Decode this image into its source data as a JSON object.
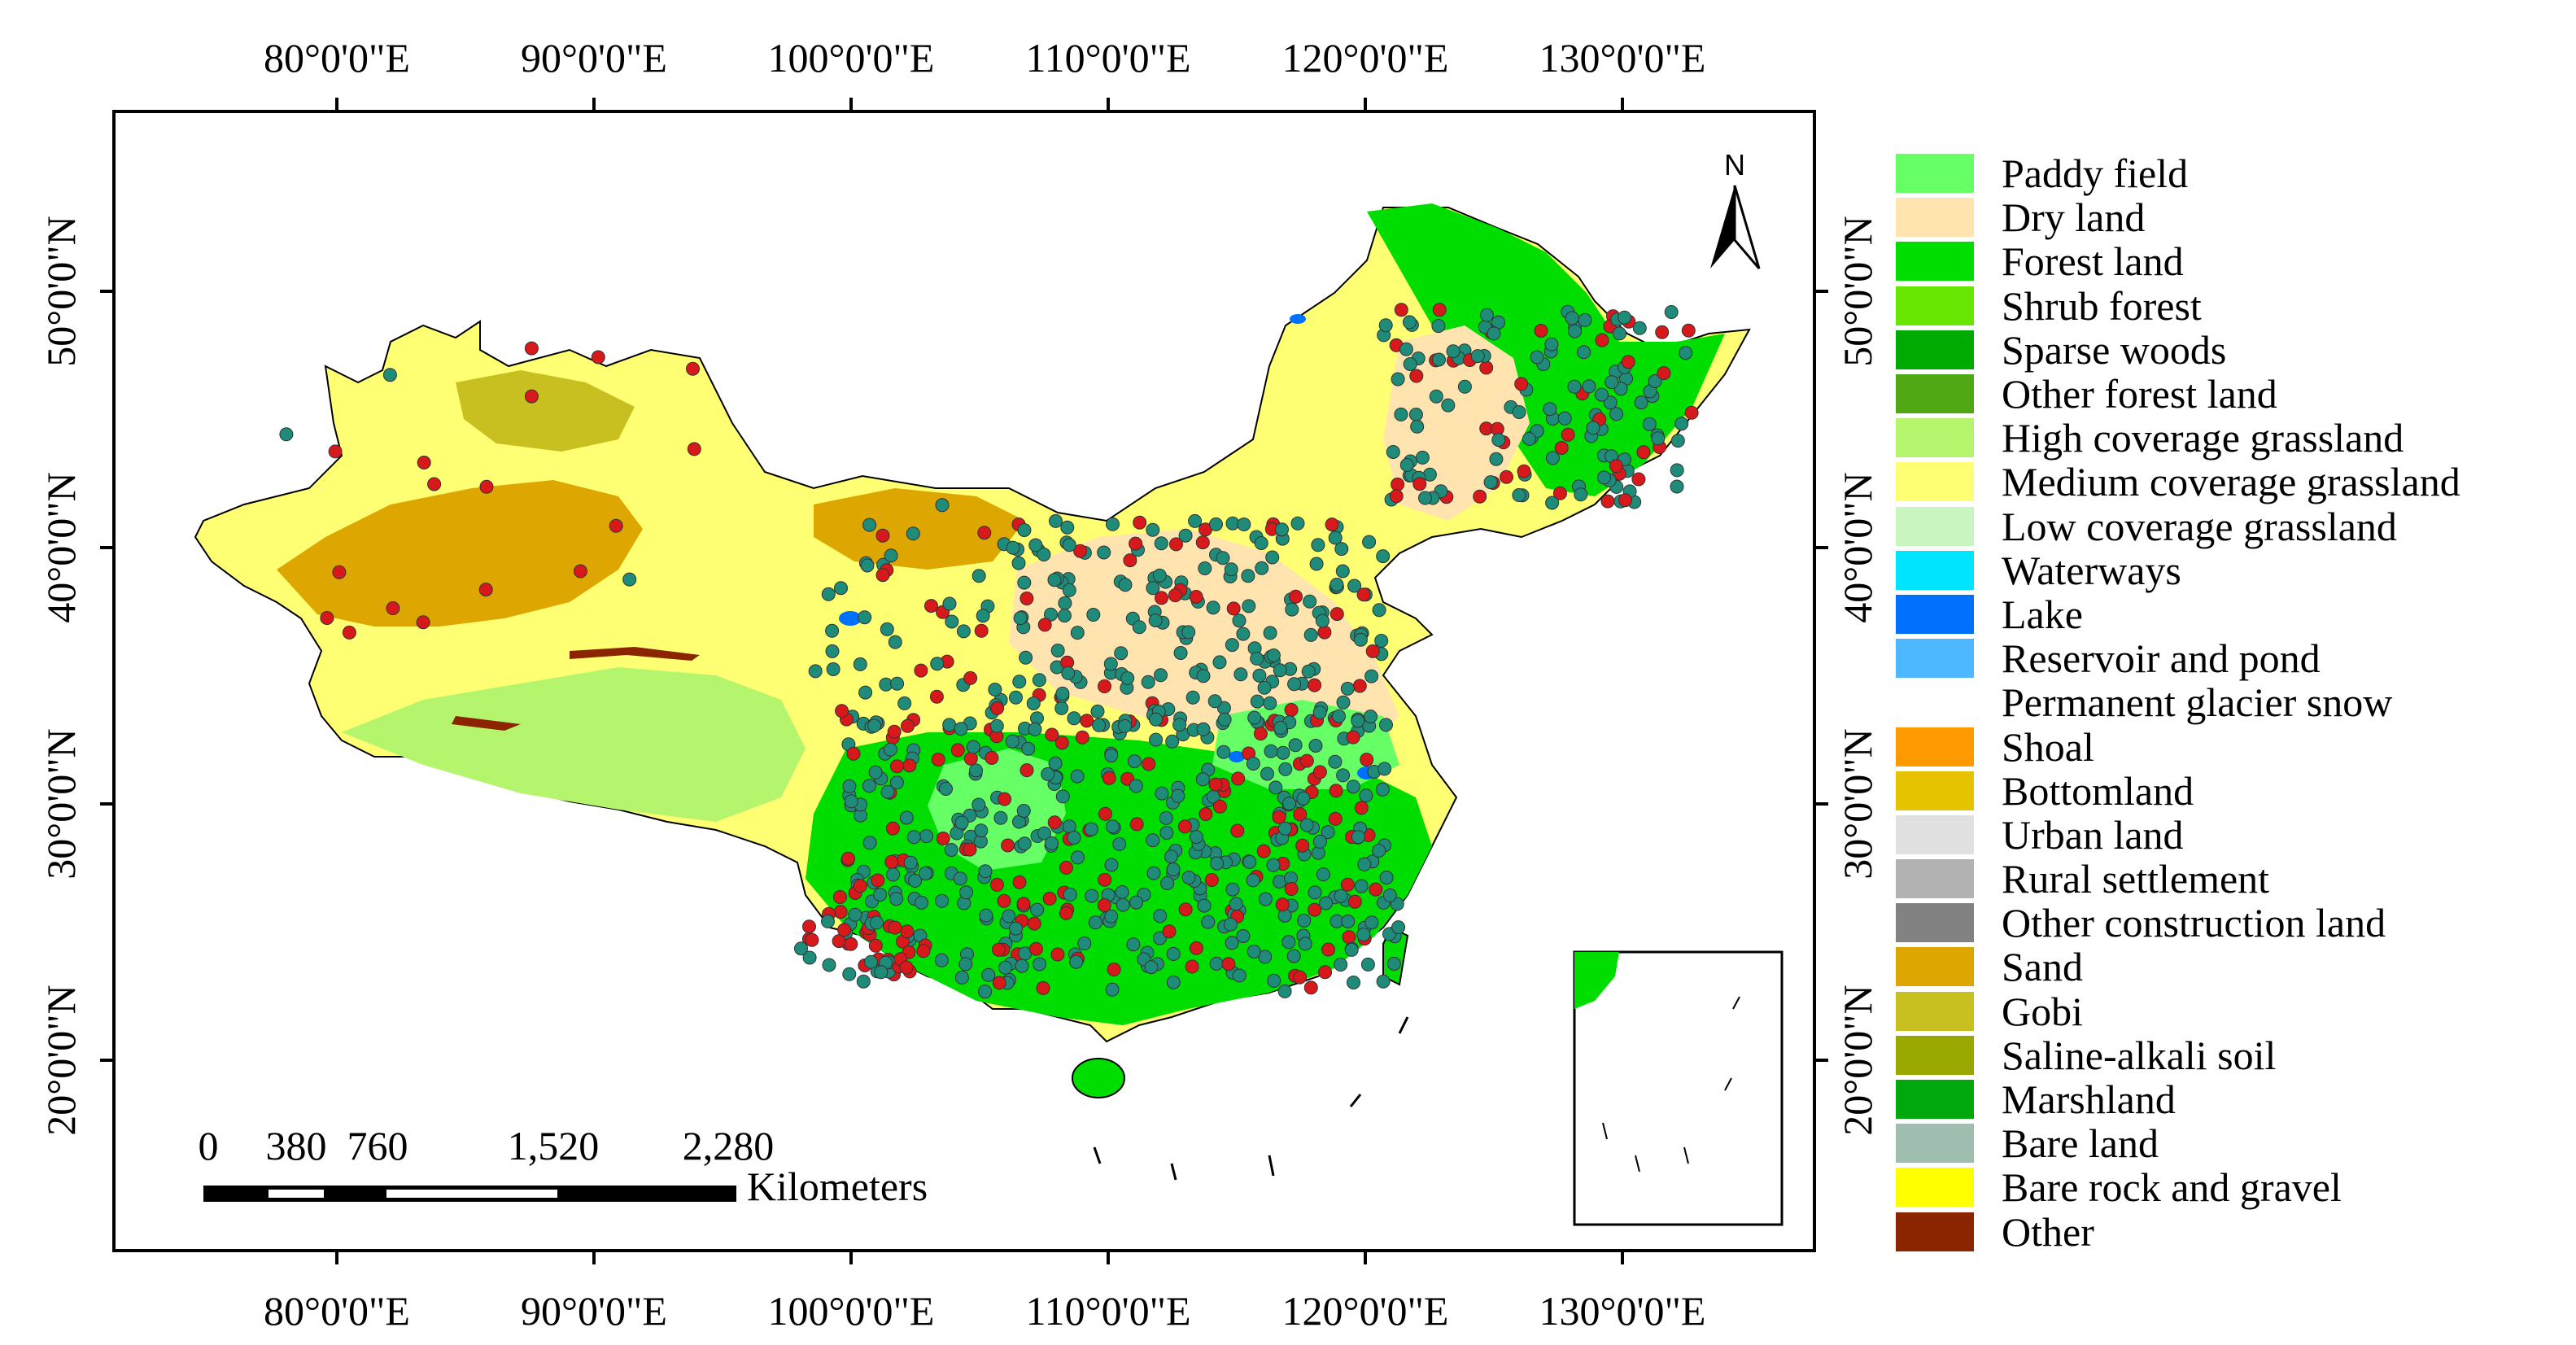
{
  "map": {
    "north_arrow_label": "N",
    "lon_labels": [
      "80°0'0\"E",
      "90°0'0\"E",
      "100°0'0\"E",
      "110°0'0\"E",
      "120°0'0\"E",
      "130°0'0\"E"
    ],
    "lat_labels": [
      "50°0'0\"N",
      "40°0'0\"N",
      "30°0'0\"N",
      "20°0'0\"N"
    ],
    "scale_bar": {
      "tick_labels": [
        "0",
        "380",
        "760",
        "1,520",
        "2,280"
      ],
      "unit": "Kilometers"
    },
    "point_colors": {
      "site_a": "#1e8c78",
      "site_b": "#d7191c"
    }
  },
  "legend": {
    "items": [
      {
        "label": "Paddy field",
        "color": "#66ff66"
      },
      {
        "label": "Dry land",
        "color": "#ffe4b0"
      },
      {
        "label": "Forest land",
        "color": "#00dd00"
      },
      {
        "label": "Shrub forest",
        "color": "#66e600"
      },
      {
        "label": "Sparse woods",
        "color": "#00aa00"
      },
      {
        "label": "Other forest land",
        "color": "#4fa814"
      },
      {
        "label": "High coverage grassland",
        "color": "#b5f56e"
      },
      {
        "label": "Medium coverage grassland",
        "color": "#ffff73"
      },
      {
        "label": "Low coverage grassland",
        "color": "#c8f5c0"
      },
      {
        "label": "Waterways",
        "color": "#00e5ff"
      },
      {
        "label": "Lake",
        "color": "#0070ff"
      },
      {
        "label": "Reservoir and pond",
        "color": "#4db8ff"
      },
      {
        "label": "Permanent glacier snow",
        "color": "#ffffff"
      },
      {
        "label": "Shoal",
        "color": "#ff9900"
      },
      {
        "label": "Bottomland",
        "color": "#e6c300"
      },
      {
        "label": "Urban land",
        "color": "#e1e1e1"
      },
      {
        "label": "Rural settlement",
        "color": "#b2b2b2"
      },
      {
        "label": "Other construction land",
        "color": "#828282"
      },
      {
        "label": "Sand",
        "color": "#dea600"
      },
      {
        "label": "Gobi",
        "color": "#c8c020"
      },
      {
        "label": "Saline-alkali soil",
        "color": "#98a800"
      },
      {
        "label": "Marshland",
        "color": "#00a80e"
      },
      {
        "label": "Bare land",
        "color": "#a0beb0"
      },
      {
        "label": "Bare rock and gravel",
        "color": "#ffff00"
      },
      {
        "label": "Other",
        "color": "#8b2500"
      }
    ]
  }
}
